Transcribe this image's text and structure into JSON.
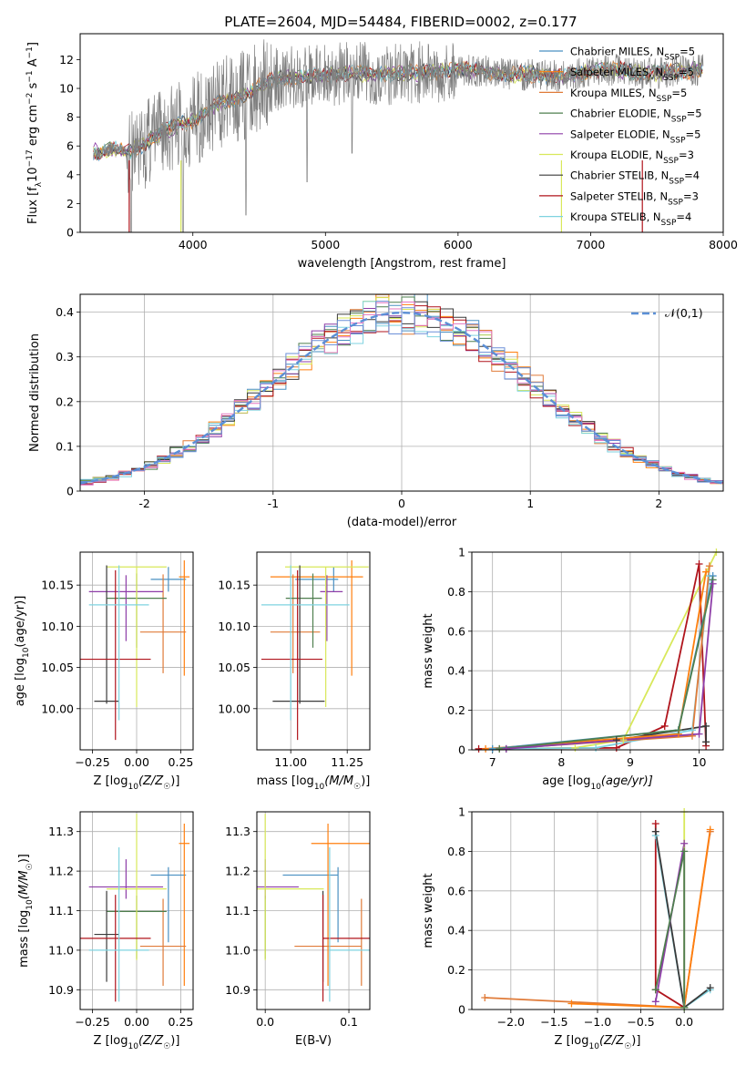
{
  "title": "PLATE=2604, MJD=54484, FIBERID=0002, z=0.177",
  "colors": {
    "Chabrier MILES": "#4a90c2",
    "Salpeter MILES": "#ff7f0e",
    "Kroupa MILES": "#e07b39",
    "Chabrier ELODIE": "#4f7f4f",
    "Salpeter ELODIE": "#8e3ea8",
    "Kroupa ELODIE": "#d8e85a",
    "Chabrier STELIB": "#3a3a3a",
    "Salpeter STELIB": "#b0141c",
    "Kroupa STELIB": "#7fd3e0",
    "data": "#808080",
    "normal": "#5b8fd6"
  },
  "chart_data": [
    {
      "id": "spectrum",
      "type": "line",
      "xlabel": "wavelength [Angstrom, rest frame]",
      "ylabel": "Flux [f",
      "xlim": [
        3150,
        8000
      ],
      "ylim": [
        0,
        13.8
      ],
      "xticks": [
        4000,
        5000,
        6000,
        7000,
        8000
      ],
      "yticks": [
        0,
        2,
        4,
        6,
        8,
        10,
        12
      ],
      "grid": false,
      "legend_position": "right",
      "legend": [
        {
          "label": "Chabrier MILES, N",
          "sub": "SSP",
          "tail": "=5",
          "color_key": "Chabrier MILES"
        },
        {
          "label": "Salpeter MILES, N",
          "sub": "SSP",
          "tail": "=5",
          "color_key": "Salpeter MILES"
        },
        {
          "label": "Kroupa MILES, N",
          "sub": "SSP",
          "tail": "=5",
          "color_key": "Kroupa MILES"
        },
        {
          "label": "Chabrier ELODIE, N",
          "sub": "SSP",
          "tail": "=5",
          "color_key": "Chabrier ELODIE"
        },
        {
          "label": "Salpeter ELODIE, N",
          "sub": "SSP",
          "tail": "=5",
          "color_key": "Salpeter ELODIE"
        },
        {
          "label": "Kroupa ELODIE, N",
          "sub": "SSP",
          "tail": "=3",
          "color_key": "Kroupa ELODIE"
        },
        {
          "label": "Chabrier STELIB, N",
          "sub": "SSP",
          "tail": "=4",
          "color_key": "Chabrier STELIB"
        },
        {
          "label": "Salpeter STELIB, N",
          "sub": "SSP",
          "tail": "=3",
          "color_key": "Salpeter STELIB"
        },
        {
          "label": "Kroupa STELIB, N",
          "sub": "SSP",
          "tail": "=4",
          "color_key": "Kroupa STELIB"
        }
      ],
      "continuum_x": [
        3300,
        3400,
        3500,
        3600,
        3700,
        3800,
        3900,
        4000,
        4100,
        4200,
        4300,
        4400,
        4500,
        4600,
        4800,
        5000,
        5200,
        5400,
        5600,
        5800,
        6000,
        6200,
        6400,
        6600,
        6800,
        7000,
        7200,
        7400,
        7600,
        7800
      ],
      "continuum_y": [
        5.6,
        5.8,
        5.6,
        5.9,
        6.6,
        7.1,
        7.5,
        7.8,
        8.3,
        9.0,
        9.3,
        9.6,
        10.2,
        10.6,
        10.8,
        10.9,
        11.1,
        11.0,
        11.1,
        11.1,
        11.3,
        11.2,
        10.9,
        11.0,
        10.8,
        11.2,
        11.3,
        11.0,
        11.1,
        11.3
      ]
    },
    {
      "id": "residuals",
      "type": "histogram",
      "xlabel": "(data-model)/error",
      "ylabel": "Normed distribution",
      "xlim": [
        -2.5,
        2.5
      ],
      "ylim": [
        0,
        0.44
      ],
      "xticks": [
        -2,
        -1,
        0,
        1,
        2
      ],
      "yticks": [
        0.0,
        0.1,
        0.2,
        0.3,
        0.4
      ],
      "grid": true,
      "bin_width": 0.1,
      "legend": "𝒩(0,1)",
      "legend_position": "top-right",
      "normal_mean": 0,
      "normal_sigma": 1
    },
    {
      "id": "age_vs_Z",
      "type": "errorbar",
      "xlabel": "Z [log",
      "xlabel_tail": "(Z/Z",
      "ylabel": "age  [log",
      "ylabel_tail": "(age/yr)]",
      "xlim": [
        -0.32,
        0.32
      ],
      "ylim": [
        9.95,
        10.19
      ],
      "xticks": [
        -0.25,
        0.0,
        0.25
      ],
      "xticklabels": [
        "−0.25",
        "0.00",
        "0.25"
      ],
      "yticks": [
        10.0,
        10.05,
        10.1,
        10.15
      ],
      "yticklabels": [
        "10.00",
        "10.05",
        "10.10",
        "10.15"
      ],
      "grid": true
    },
    {
      "id": "age_vs_mass",
      "type": "errorbar",
      "xlabel": "mass [log",
      "xlabel_tail": "(M/M",
      "xlim": [
        10.85,
        11.35
      ],
      "ylim": [
        9.95,
        10.19
      ],
      "xticks": [
        11.0,
        11.25
      ],
      "xticklabels": [
        "11.00",
        "11.25"
      ],
      "yticks": [
        10.0,
        10.05,
        10.1,
        10.15
      ],
      "yticklabels": [
        "10.00",
        "10.05",
        "10.10",
        "10.15"
      ],
      "grid": true
    },
    {
      "id": "weight_vs_age",
      "type": "line",
      "xlabel": "age  [log",
      "xlabel_tail": "(age/yr)]",
      "ylabel": "mass weight",
      "xlim": [
        6.7,
        10.35
      ],
      "ylim": [
        0,
        1.0
      ],
      "xticks": [
        7,
        8,
        9,
        10
      ],
      "xticklabels": [
        "7",
        "8",
        "9",
        "10"
      ],
      "yticks": [
        0.0,
        0.2,
        0.4,
        0.6,
        0.8,
        1.0
      ],
      "grid": true
    },
    {
      "id": "mass_vs_Z",
      "type": "errorbar",
      "xlabel": "Z [log",
      "xlabel_tail": "(Z/Z",
      "ylabel": "mass [log",
      "ylabel_tail": "(M/M",
      "xlim": [
        -0.32,
        0.32
      ],
      "ylim": [
        10.85,
        11.35
      ],
      "xticks": [
        -0.25,
        0.0,
        0.25
      ],
      "xticklabels": [
        "−0.25",
        "0.00",
        "0.25"
      ],
      "yticks": [
        10.9,
        11.0,
        11.1,
        11.2,
        11.3
      ],
      "yticklabels": [
        "10.9",
        "11.0",
        "11.1",
        "11.2",
        "11.3"
      ],
      "grid": true
    },
    {
      "id": "mass_vs_EBV",
      "type": "errorbar",
      "xlabel": "E(B-V)",
      "xlim": [
        -0.01,
        0.125
      ],
      "ylim": [
        10.85,
        11.35
      ],
      "xticks": [
        0.0,
        0.1
      ],
      "xticklabels": [
        "0.0",
        "0.1"
      ],
      "yticks": [
        10.9,
        11.0,
        11.1,
        11.2,
        11.3
      ],
      "yticklabels": [
        "10.9",
        "11.0",
        "11.1",
        "11.2",
        "11.3"
      ],
      "grid": true
    },
    {
      "id": "weight_vs_Z",
      "type": "line",
      "xlabel": "Z [log",
      "xlabel_tail": "(Z/Z",
      "ylabel": "mass weight",
      "xlim": [
        -2.45,
        0.45
      ],
      "ylim": [
        0,
        1.0
      ],
      "xticks": [
        -2.0,
        -1.5,
        -1.0,
        -0.5,
        0.0
      ],
      "xticklabels": [
        "−2.0",
        "−1.5",
        "−1.0",
        "−0.5",
        "0.0"
      ],
      "yticks": [
        0.0,
        0.2,
        0.4,
        0.6,
        0.8,
        1.0
      ],
      "grid": true
    }
  ],
  "fits": [
    {
      "key": "Chabrier MILES",
      "Z": 0.18,
      "Zerr": 0.1,
      "age": 10.157,
      "age_lo": 0.015,
      "age_hi": 0.015,
      "mass": 11.19,
      "mass_lo": 0.17,
      "mass_hi": 0.02,
      "ebv": 0.087,
      "ebv_lo": 0.066,
      "ebv_hi": 0.0
    },
    {
      "key": "Salpeter MILES",
      "Z": 0.27,
      "Zerr": 0.03,
      "age": 10.16,
      "age_lo": 0.12,
      "age_hi": 0.02,
      "mass": 11.27,
      "mass_lo": 0.36,
      "mass_hi": 0.05,
      "ebv": 0.075,
      "ebv_lo": 0.02,
      "ebv_hi": 0.05
    },
    {
      "key": "Kroupa MILES",
      "Z": 0.15,
      "Zerr": 0.13,
      "age": 10.093,
      "age_lo": 0.05,
      "age_hi": 0.07,
      "mass": 11.01,
      "mass_lo": 0.1,
      "mass_hi": 0.12,
      "ebv": 0.115,
      "ebv_lo": 0.08,
      "ebv_hi": 0.0
    },
    {
      "key": "Chabrier ELODIE",
      "Z": 0.0,
      "Zerr": 0.17,
      "age": 10.134,
      "age_lo": 0.06,
      "age_hi": 0.03,
      "mass": 11.098,
      "mass_lo": 0.12,
      "mass_hi": 0.04,
      "ebv": 0.0,
      "ebv_lo": 0.0,
      "ebv_hi": 0.0
    },
    {
      "key": "Salpeter ELODIE",
      "Z": -0.06,
      "Zerr": 0.21,
      "age": 10.142,
      "age_lo": 0.06,
      "age_hi": 0.02,
      "mass": 11.16,
      "mass_lo": 0.03,
      "mass_hi": 0.07,
      "ebv": 0.0,
      "ebv_lo": 0.03,
      "ebv_hi": 0.04
    },
    {
      "key": "Kroupa ELODIE",
      "Z": 0.0,
      "Zerr": 0.17,
      "age": 10.172,
      "age_lo": 0.17,
      "age_hi": 0.0,
      "mass": 11.155,
      "mass_lo": 0.18,
      "mass_hi": 0.19,
      "ebv": 0.0,
      "ebv_lo": 0.03,
      "ebv_hi": 0.07
    },
    {
      "key": "Chabrier STELIB",
      "Z": -0.17,
      "Zerr": 0.07,
      "age": 10.009,
      "age_lo": 0.003,
      "age_hi": 0.165,
      "mass": 11.04,
      "mass_lo": 0.12,
      "mass_hi": 0.11,
      "ebv": 0.069,
      "ebv_lo": 0.0,
      "ebv_hi": 0.0
    },
    {
      "key": "Salpeter STELIB",
      "Z": -0.12,
      "Zerr": 0.2,
      "age": 10.06,
      "age_lo": 0.098,
      "age_hi": 0.108,
      "mass": 11.03,
      "mass_lo": 0.16,
      "mass_hi": 0.11,
      "ebv": 0.069,
      "ebv_lo": 0.0,
      "ebv_hi": 0.07
    },
    {
      "key": "Kroupa STELIB",
      "Z": -0.1,
      "Zerr": 0.17,
      "age": 10.126,
      "age_lo": 0.14,
      "age_hi": 0.048,
      "mass": 11.0,
      "mass_lo": 0.13,
      "mass_hi": 0.26,
      "ebv": 0.077,
      "ebv_lo": 0.0,
      "ebv_hi": 0.06
    }
  ],
  "weights_age": {
    "Kroupa ELODIE": [
      [
        7.0,
        0.005
      ],
      [
        8.2,
        0.01
      ],
      [
        8.9,
        0.05
      ],
      [
        10.25,
        1.0
      ]
    ],
    "Salpeter STELIB": [
      [
        6.8,
        0.005
      ],
      [
        8.8,
        0.01
      ],
      [
        9.5,
        0.12
      ],
      [
        10.0,
        0.94
      ],
      [
        10.1,
        0.02
      ]
    ],
    "Chabrier STELIB": [
      [
        7.2,
        0.005
      ],
      [
        8.8,
        0.05
      ],
      [
        10.1,
        0.12
      ],
      [
        10.1,
        0.04
      ]
    ],
    "Kroupa STELIB": [
      [
        7.0,
        0.005
      ],
      [
        8.5,
        0.01
      ],
      [
        9.9,
        0.1
      ],
      [
        10.15,
        0.88
      ]
    ],
    "Salpeter MILES": [
      [
        6.9,
        0.005
      ],
      [
        9.7,
        0.08
      ],
      [
        10.1,
        0.9
      ]
    ],
    "Chabrier MILES": [
      [
        7.0,
        0.005
      ],
      [
        9.7,
        0.1
      ],
      [
        10.2,
        0.88
      ]
    ],
    "Kroupa MILES": [
      [
        7.1,
        0.005
      ],
      [
        9.9,
        0.07
      ],
      [
        10.15,
        0.93
      ]
    ],
    "Chabrier ELODIE": [
      [
        7.1,
        0.005
      ],
      [
        9.7,
        0.1
      ],
      [
        10.2,
        0.86
      ]
    ],
    "Salpeter ELODIE": [
      [
        7.2,
        0.005
      ],
      [
        10.0,
        0.08
      ],
      [
        10.2,
        0.84
      ]
    ]
  },
  "weights_Z": {
    "Kroupa MILES": [
      [
        -2.3,
        0.06
      ],
      [
        0.0,
        0.01
      ],
      [
        0.3,
        0.9
      ]
    ],
    "Salpeter MILES": [
      [
        -1.3,
        0.03
      ],
      [
        0.0,
        0.01
      ],
      [
        0.3,
        0.91
      ]
    ],
    "Salpeter STELIB": [
      [
        -0.33,
        0.94
      ],
      [
        -0.33,
        0.1
      ],
      [
        0.0,
        0.01
      ]
    ],
    "Kroupa STELIB": [
      [
        -0.33,
        0.88
      ],
      [
        0.0,
        0.01
      ],
      [
        0.3,
        0.1
      ]
    ],
    "Chabrier STELIB": [
      [
        -0.33,
        0.9
      ],
      [
        0.0,
        0.01
      ],
      [
        0.3,
        0.11
      ]
    ],
    "Salpeter ELODIE": [
      [
        -0.33,
        0.04
      ],
      [
        0.0,
        0.84
      ],
      [
        0.0,
        0.01
      ]
    ],
    "Kroupa ELODIE": [
      [
        0.0,
        1.0
      ],
      [
        0.0,
        0.01
      ]
    ],
    "Chabrier ELODIE": [
      [
        -0.33,
        0.1
      ],
      [
        0.0,
        0.8
      ],
      [
        0.0,
        0.01
      ]
    ]
  }
}
